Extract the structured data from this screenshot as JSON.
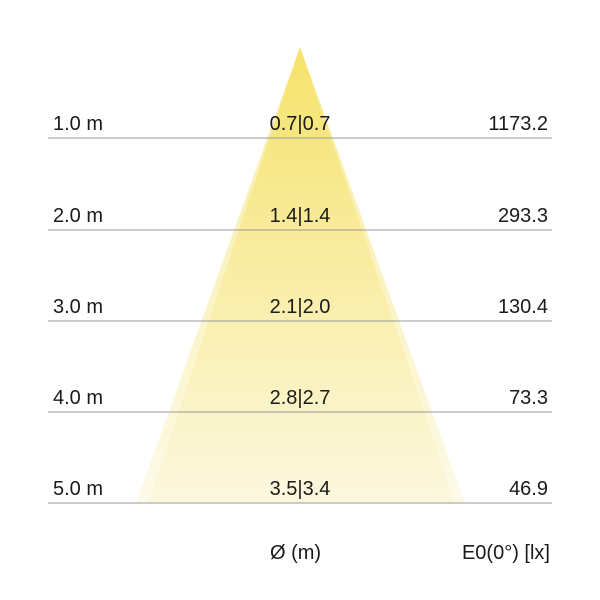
{
  "rows": [
    {
      "distance": "1.0 m",
      "diameter": "0.7|0.7",
      "illuminance": "1173.2"
    },
    {
      "distance": "2.0 m",
      "diameter": "1.4|1.4",
      "illuminance": "293.3"
    },
    {
      "distance": "3.0 m",
      "diameter": "2.1|2.0",
      "illuminance": "130.4"
    },
    {
      "distance": "4.0 m",
      "diameter": "2.8|2.7",
      "illuminance": "73.3"
    },
    {
      "distance": "5.0 m",
      "diameter": "3.5|3.4",
      "illuminance": "46.9"
    }
  ],
  "footer": {
    "diameter_label": "Ø (m)",
    "illuminance_label": "E0(0°) [lx]"
  },
  "colors": {
    "cone_top": "#f3dc4a",
    "cone_bottom": "#fbf6d8",
    "rule": "#999999"
  }
}
